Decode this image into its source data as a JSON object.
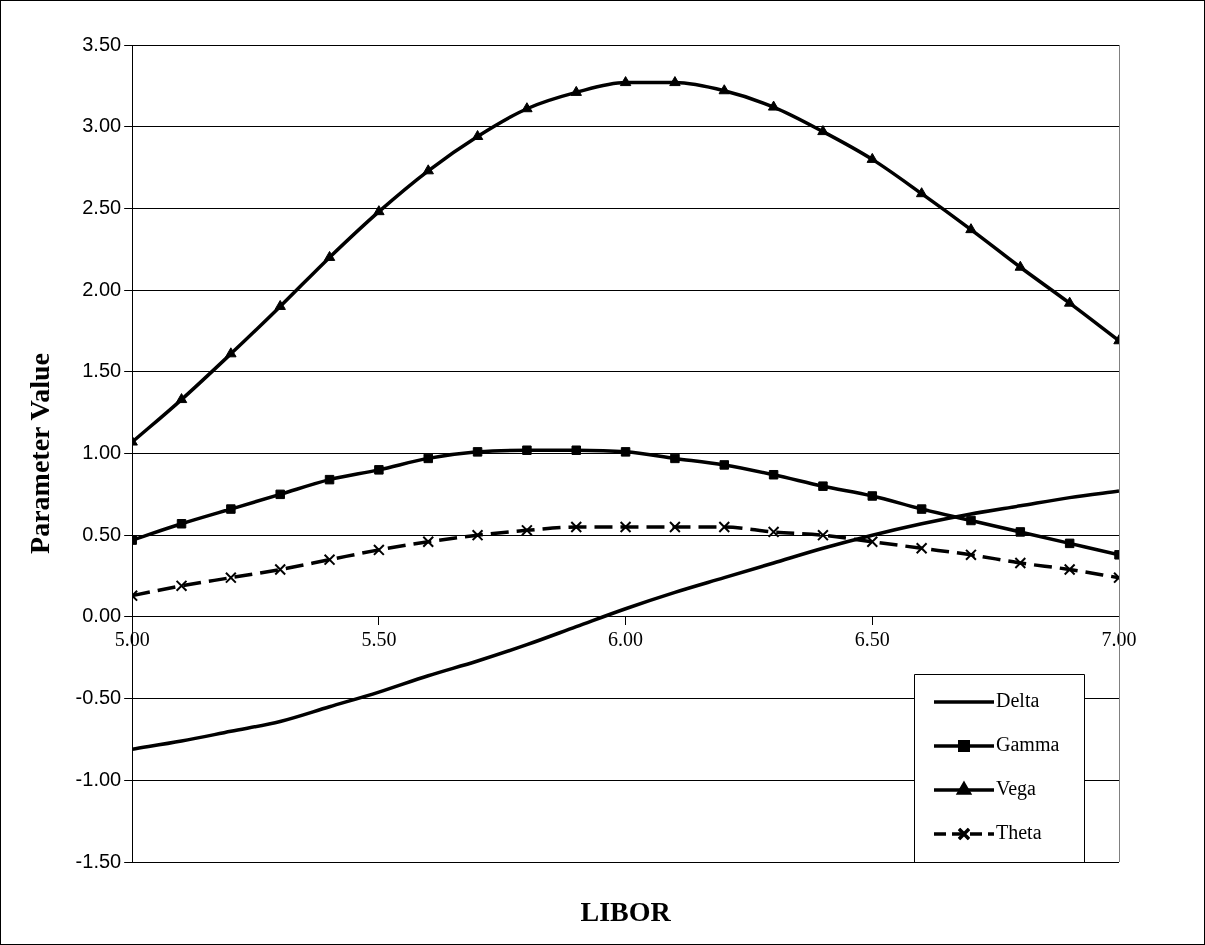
{
  "chart_data": {
    "type": "line",
    "xlabel": "LIBOR",
    "ylabel": "Parameter Value",
    "x": [
      5.0,
      5.1,
      5.2,
      5.3,
      5.4,
      5.5,
      5.6,
      5.7,
      5.8,
      5.9,
      6.0,
      6.1,
      6.2,
      6.3,
      6.4,
      6.5,
      6.6,
      6.7,
      6.8,
      6.9,
      7.0
    ],
    "xlim": [
      5,
      7
    ],
    "xticks": [
      {
        "value": 5,
        "label": "5.00"
      },
      {
        "value": 5.5,
        "label": "5.50"
      },
      {
        "value": 6,
        "label": "6.00"
      },
      {
        "value": 6.5,
        "label": "6.50"
      },
      {
        "value": 7,
        "label": "7.00"
      }
    ],
    "ylim": [
      -1.5,
      3.5
    ],
    "yticks": [
      {
        "value": -1.5,
        "label": "-1.50"
      },
      {
        "value": -1,
        "label": "-1.00"
      },
      {
        "value": -0.5,
        "label": "-0.50"
      },
      {
        "value": 0,
        "label": "0.00"
      },
      {
        "value": 0.5,
        "label": "0.50"
      },
      {
        "value": 1,
        "label": "1.00"
      },
      {
        "value": 1.5,
        "label": "1.50"
      },
      {
        "value": 2,
        "label": "2.00"
      },
      {
        "value": 2.5,
        "label": "2.50"
      },
      {
        "value": 3,
        "label": "3.00"
      },
      {
        "value": 3.5,
        "label": "3.50"
      }
    ],
    "grid": "y",
    "legend": "bottom right",
    "series": [
      {
        "name": "Delta",
        "color": "#000000",
        "marker": "none",
        "line_style": "solid",
        "values": [
          -0.81,
          -0.76,
          -0.7,
          -0.64,
          -0.55,
          -0.46,
          -0.36,
          -0.27,
          -0.17,
          -0.06,
          0.05,
          0.15,
          0.24,
          0.33,
          0.42,
          0.5,
          0.57,
          0.63,
          0.68,
          0.73,
          0.77
        ]
      },
      {
        "name": "Gamma",
        "color": "#000000",
        "marker": "square",
        "line_style": "solid",
        "values": [
          0.47,
          0.57,
          0.66,
          0.75,
          0.84,
          0.9,
          0.97,
          1.01,
          1.02,
          1.02,
          1.01,
          0.97,
          0.93,
          0.87,
          0.8,
          0.74,
          0.66,
          0.59,
          0.52,
          0.45,
          0.38
        ]
      },
      {
        "name": "Vega",
        "color": "#000000",
        "marker": "triangle",
        "line_style": "solid",
        "values": [
          1.07,
          1.33,
          1.61,
          1.9,
          2.2,
          2.48,
          2.73,
          2.94,
          3.11,
          3.21,
          3.27,
          3.27,
          3.22,
          3.12,
          2.97,
          2.8,
          2.59,
          2.37,
          2.14,
          1.92,
          1.69
        ]
      },
      {
        "name": "Theta",
        "color": "#000000",
        "marker": "cross",
        "line_style": "dashed",
        "values": [
          0.13,
          0.19,
          0.24,
          0.29,
          0.35,
          0.41,
          0.46,
          0.5,
          0.53,
          0.55,
          0.55,
          0.55,
          0.55,
          0.52,
          0.5,
          0.46,
          0.42,
          0.38,
          0.33,
          0.29,
          0.24
        ]
      }
    ]
  }
}
